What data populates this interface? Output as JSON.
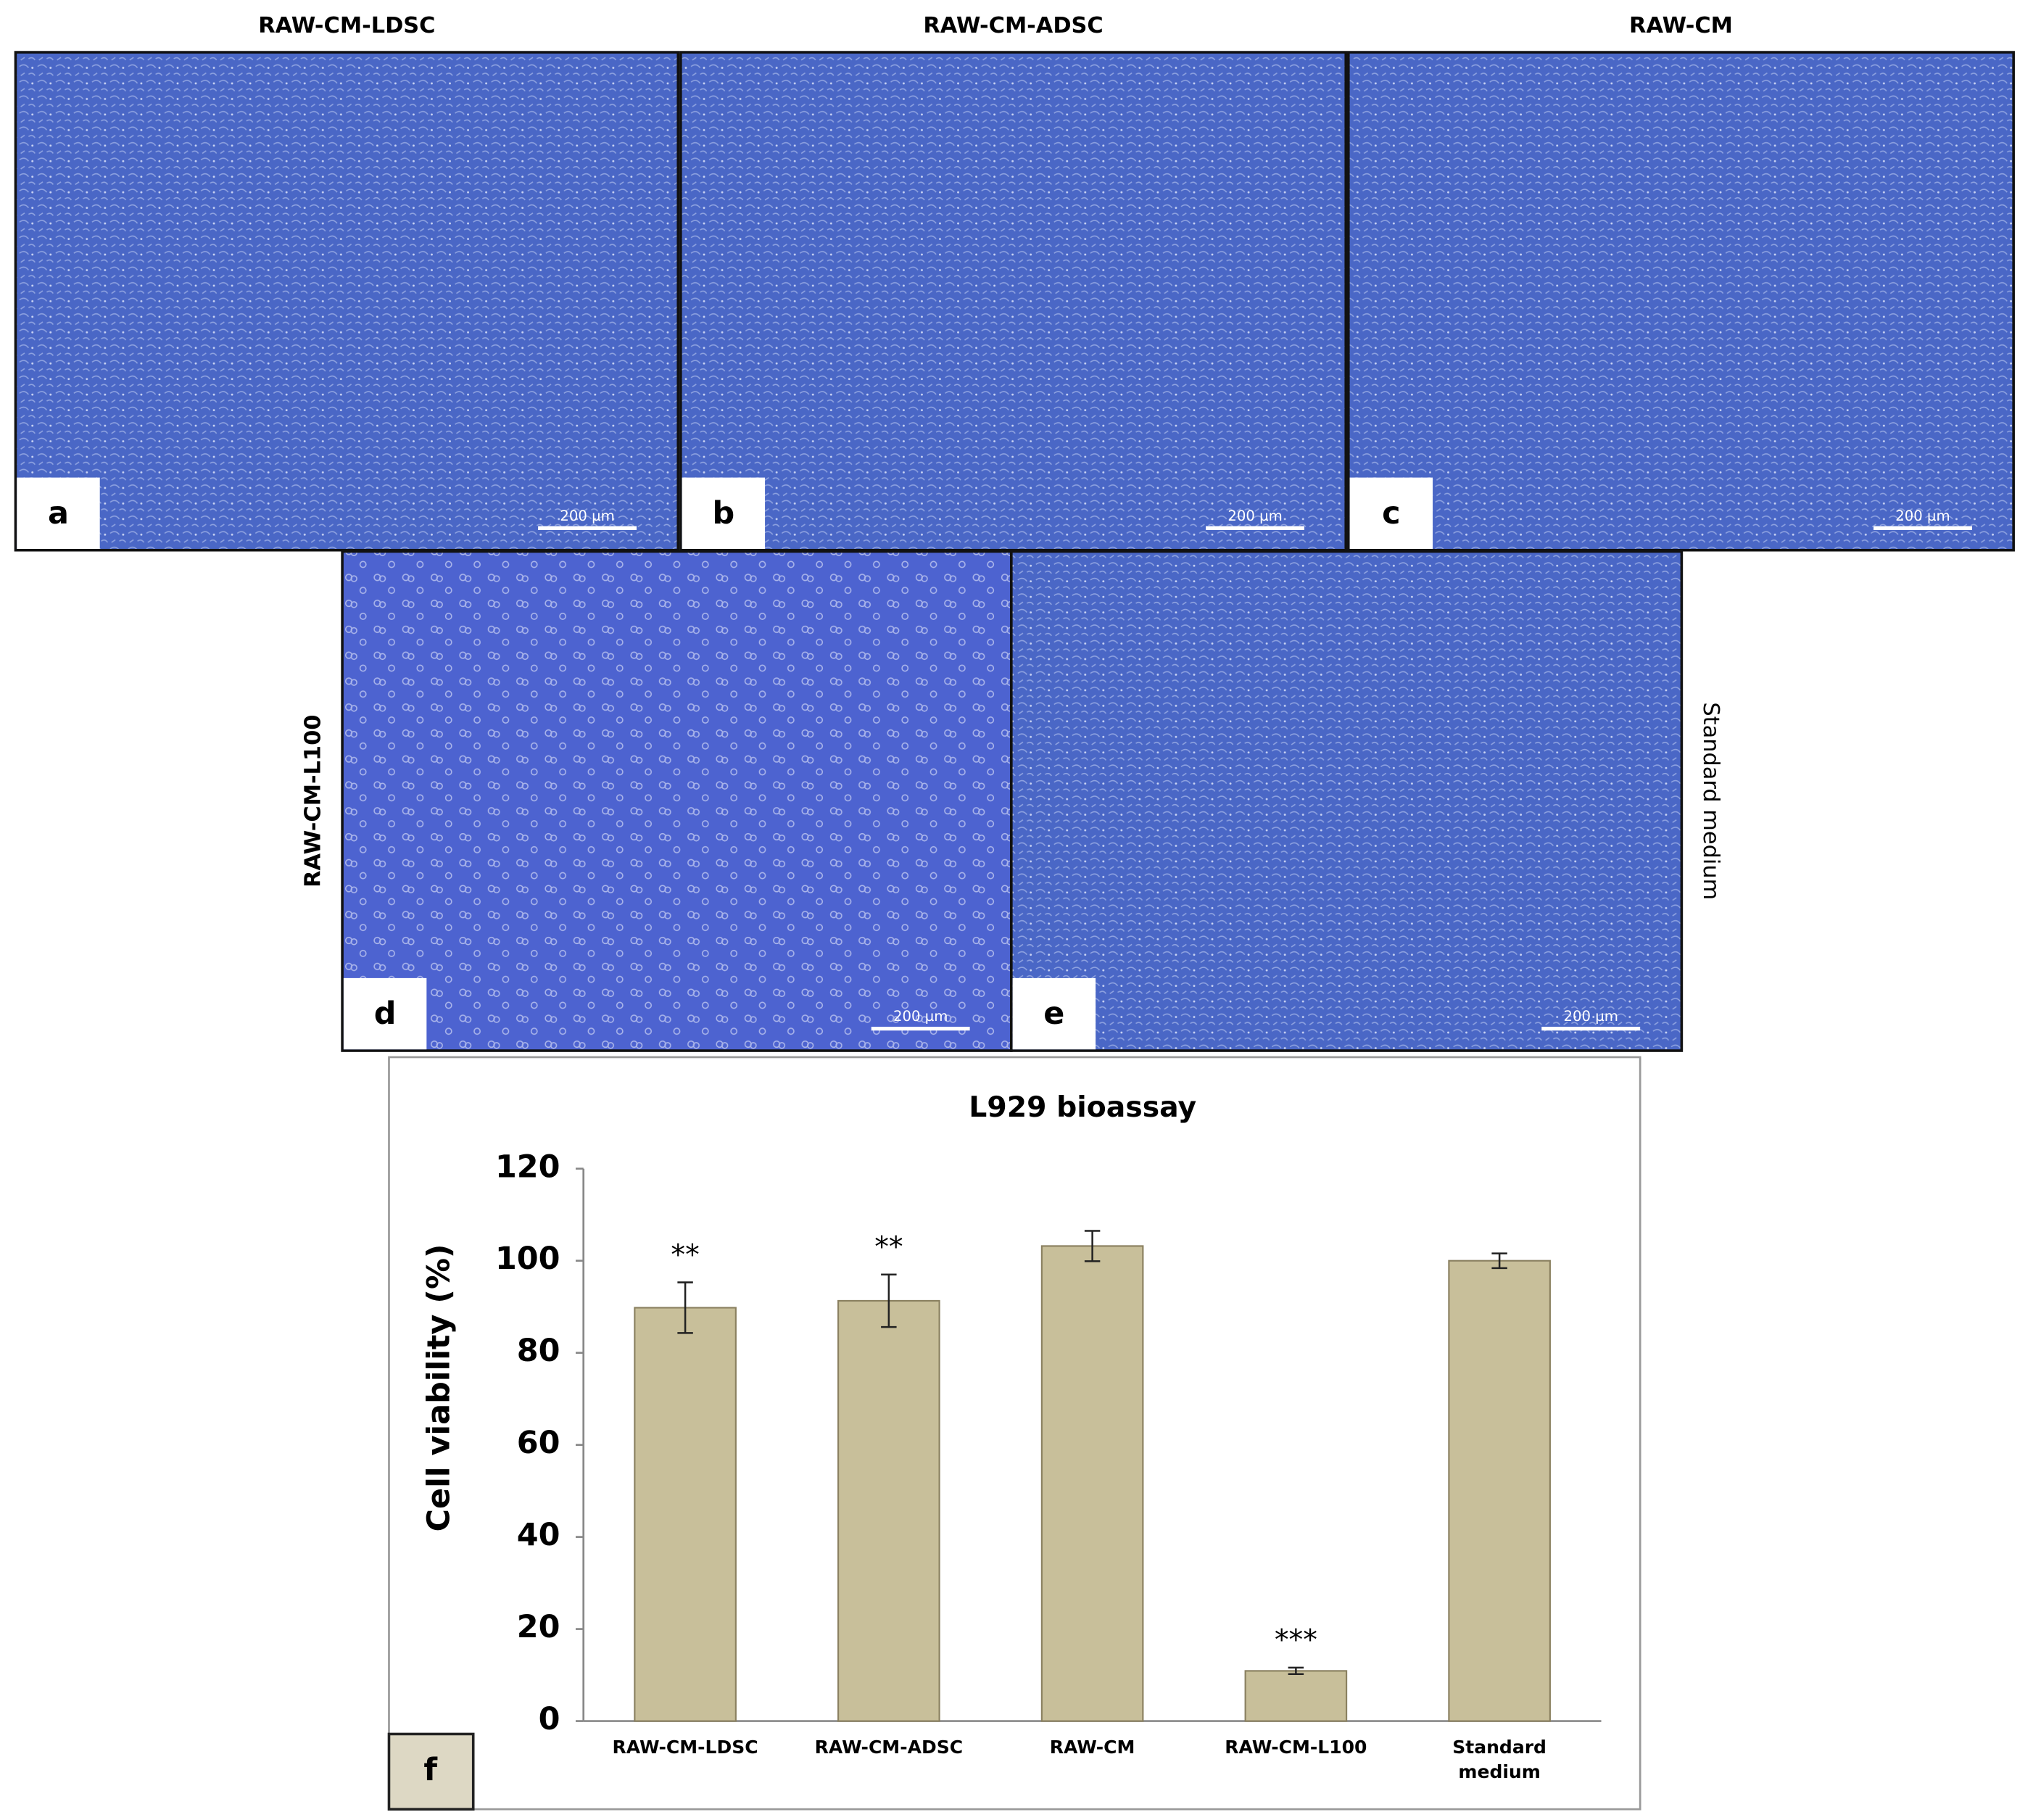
{
  "panels": [
    {
      "letter": "a",
      "title": "RAW-CM-LDSC",
      "scale_bar": "200 µm"
    },
    {
      "letter": "b",
      "title": "RAW-CM-ADSC",
      "scale_bar": "200 µm"
    },
    {
      "letter": "c",
      "title": "RAW-CM",
      "scale_bar": "200 µm"
    },
    {
      "letter": "d",
      "title": "RAW-CM-L100",
      "scale_bar": "200 µm"
    },
    {
      "letter": "e",
      "title": "Standard medium",
      "scale_bar": "200 µm"
    }
  ],
  "chart_data": {
    "type": "bar",
    "title": "L929 bioassay",
    "panel_label": "f",
    "y_label": "Cell viability (%)",
    "categories": [
      "RAW-CM-LDSC",
      "RAW-CM-ADSC",
      "RAW-CM",
      "RAW-CM-L100",
      "Standard medium"
    ],
    "values": [
      89.8,
      91.3,
      103.2,
      10.9,
      100
    ],
    "errors": [
      5.5,
      5.7,
      3.3,
      0.7,
      1.6
    ],
    "color": "#c8bf9a",
    "annotations": [
      {
        "x": "RAW-CM-LDSC",
        "text": "**"
      },
      {
        "x": "RAW-CM-ADSC",
        "text": "**"
      },
      {
        "x": "RAW-CM-L100",
        "text": "***"
      }
    ],
    "ylim": [
      0,
      120
    ],
    "yticks": [
      0,
      20,
      40,
      60,
      80,
      100,
      120
    ]
  }
}
